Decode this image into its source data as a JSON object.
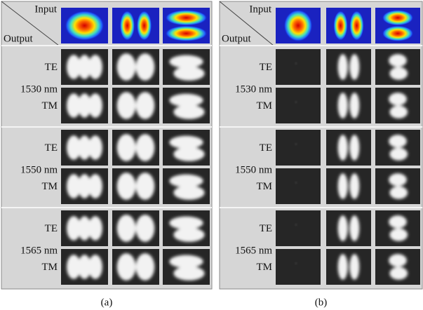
{
  "panels": [
    {
      "caption": "(a)",
      "input_label": "Input",
      "output_label": "Output",
      "groups": [
        {
          "wavelength": "1530 nm",
          "polarizations": [
            "TE",
            "TM"
          ]
        },
        {
          "wavelength": "1550 nm",
          "polarizations": [
            "TE",
            "TM"
          ]
        },
        {
          "wavelength": "1565 nm",
          "polarizations": [
            "TE",
            "TM"
          ]
        }
      ]
    },
    {
      "caption": "(b)",
      "input_label": "Input",
      "output_label": "Output",
      "groups": [
        {
          "wavelength": "1530 nm",
          "polarizations": [
            "TE",
            "TM"
          ]
        },
        {
          "wavelength": "1550 nm",
          "polarizations": [
            "TE",
            "TM"
          ]
        },
        {
          "wavelength": "1565 nm",
          "polarizations": [
            "TE",
            "TM"
          ]
        }
      ]
    }
  ]
}
